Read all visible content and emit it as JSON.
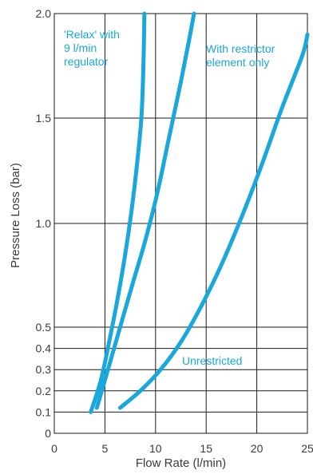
{
  "chart_data": {
    "type": "line",
    "title": "",
    "xlabel": "Flow Rate (l/min)",
    "ylabel": "Pressure Loss (bar)",
    "xlim": [
      0,
      25
    ],
    "ylim": [
      0,
      2.0
    ],
    "grid": true,
    "x_ticks": [
      0,
      5,
      10,
      15,
      20,
      25
    ],
    "x_tick_labels": [
      "0",
      "5",
      "10",
      "15",
      "20",
      "25"
    ],
    "y_ticks": [
      0,
      0.1,
      0.2,
      0.3,
      0.4,
      0.5,
      1.0,
      1.5,
      2.0
    ],
    "y_tick_labels": [
      "0",
      "0.1",
      "0.2",
      "0.3",
      "0.4",
      "0.5",
      "1.0",
      "1.5",
      "2.0"
    ],
    "series": [
      {
        "id": "relax",
        "label_lines": [
          "'Relax' with",
          "9 l/min",
          "regulator"
        ],
        "color": "#1aa7dc",
        "points": [
          [
            3.6,
            0.1
          ],
          [
            4.6,
            0.25
          ],
          [
            5.5,
            0.45
          ],
          [
            6.3,
            0.65
          ],
          [
            7.0,
            0.85
          ],
          [
            7.6,
            1.05
          ],
          [
            8.1,
            1.25
          ],
          [
            8.6,
            1.5
          ],
          [
            8.8,
            1.75
          ],
          [
            8.9,
            2.0
          ]
        ]
      },
      {
        "id": "restrictor",
        "label_lines": [
          "With restrictor",
          "element only"
        ],
        "color": "#1aa7dc",
        "points": [
          [
            4.2,
            0.12
          ],
          [
            5.3,
            0.3
          ],
          [
            6.5,
            0.5
          ],
          [
            7.8,
            0.72
          ],
          [
            9.0,
            0.92
          ],
          [
            10.2,
            1.15
          ],
          [
            11.3,
            1.4
          ],
          [
            12.4,
            1.65
          ],
          [
            13.3,
            1.87
          ],
          [
            13.8,
            2.0
          ]
        ]
      },
      {
        "id": "unrestricted",
        "label_lines": [
          "Unrestricted"
        ],
        "color": "#1aa7dc",
        "points": [
          [
            6.5,
            0.12
          ],
          [
            8.5,
            0.2
          ],
          [
            10.5,
            0.3
          ],
          [
            12.5,
            0.43
          ],
          [
            14.5,
            0.6
          ],
          [
            16.5,
            0.8
          ],
          [
            18.5,
            1.03
          ],
          [
            20.5,
            1.28
          ],
          [
            22.5,
            1.55
          ],
          [
            24.5,
            1.8
          ],
          [
            25.0,
            1.9
          ]
        ]
      }
    ]
  }
}
